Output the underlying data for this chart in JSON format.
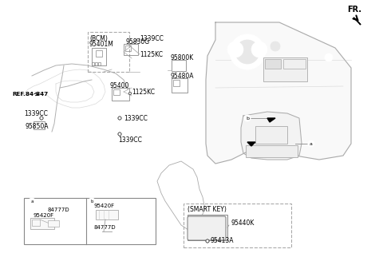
{
  "title": "",
  "bg_color": "#ffffff",
  "fr_label": "FR.",
  "part_numbers": {
    "BCM_label": "(BCM)",
    "p1": "95401M",
    "p2": "95830G",
    "p3": "1339CC",
    "p4": "1125KC",
    "p5": "95400",
    "p6": "1125KC",
    "p7": "95800K",
    "p8": "95480A",
    "p9": "1339CC",
    "p10": "1339CC",
    "p11": "1339CC",
    "p12": "95850A",
    "p13": "REF.84-847",
    "p14": "84777D",
    "p15": "95420F",
    "p16": "84777D",
    "p17": "95420F",
    "p18": "95440K",
    "p19": "95413A",
    "smart_key_label": "(SMART KEY)",
    "a_label": "a",
    "b_label": "b"
  },
  "colors": {
    "line_color": "#808080",
    "text_color": "#000000",
    "dashed_box_color": "#999999",
    "box_border": "#888888",
    "arrow_color": "#000000"
  }
}
